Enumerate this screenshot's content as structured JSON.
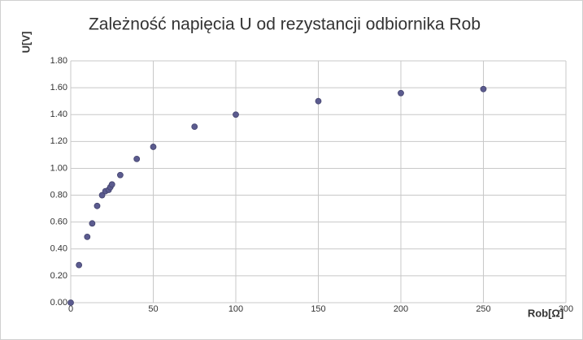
{
  "chart_data": {
    "type": "scatter",
    "title": "Zależność napięcia  U od rezystancji odbiornika Rob",
    "x_label": "Rob[Ω]",
    "y_label": "U[V]",
    "series": [
      {
        "color": "#5b5b8f",
        "x": [
          0,
          5,
          10,
          13,
          16,
          19,
          21,
          23,
          24,
          25,
          30,
          40,
          50,
          75,
          100,
          150,
          200,
          250
        ],
        "values": [
          0,
          0.28,
          0.49,
          0.59,
          0.72,
          0.8,
          0.83,
          0.84,
          0.86,
          0.88,
          0.95,
          1.07,
          1.16,
          1.31,
          1.4,
          1.5,
          1.56,
          1.59
        ]
      }
    ],
    "xlim": [
      0,
      300
    ],
    "xticks": [
      0,
      50,
      100,
      150,
      200,
      250,
      300
    ],
    "ylim": [
      0,
      1.8
    ],
    "yticks": [
      {
        "value": 0,
        "label": "0.00"
      },
      {
        "value": 0.2,
        "label": "0.20"
      },
      {
        "value": 0.4,
        "label": "0.40"
      },
      {
        "value": 0.6,
        "label": "0.60"
      },
      {
        "value": 0.8,
        "label": "0.80"
      },
      {
        "value": 1.0,
        "label": "1.00"
      },
      {
        "value": 1.2,
        "label": "1.20"
      },
      {
        "value": 1.4,
        "label": "1.40"
      },
      {
        "value": 1.6,
        "label": "1.60"
      },
      {
        "value": 1.8,
        "label": "1.80"
      }
    ],
    "grid": true
  }
}
